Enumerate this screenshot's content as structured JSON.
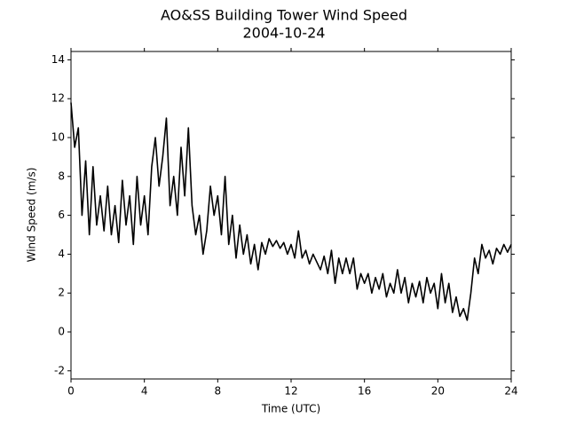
{
  "chart_data": {
    "type": "line",
    "title": "AO&SS Building Tower Wind Speed",
    "subtitle": "2004-10-24",
    "x_label": "Time (UTC)",
    "y_label": "Wind Speed (m/s)",
    "xlim": [
      0,
      24
    ],
    "xticks": [
      0,
      4,
      8,
      12,
      16,
      20,
      24
    ],
    "ylim": [
      -2.42,
      14.43
    ],
    "yticks": [
      -2,
      0,
      2,
      4,
      6,
      8,
      10,
      12,
      14
    ],
    "grid": false,
    "x": [
      0,
      0.2,
      0.4,
      0.6,
      0.8,
      1,
      1.2,
      1.4,
      1.6,
      1.8,
      2,
      2.2,
      2.4,
      2.6,
      2.8,
      3,
      3.2,
      3.4,
      3.6,
      3.8,
      4,
      4.2,
      4.4,
      4.6,
      4.8,
      5,
      5.2,
      5.4,
      5.6,
      5.8,
      6,
      6.2,
      6.4,
      6.6,
      6.8,
      7,
      7.2,
      7.4,
      7.6,
      7.8,
      8,
      8.2,
      8.4,
      8.6,
      8.8,
      9,
      9.2,
      9.4,
      9.6,
      9.8,
      10,
      10.2,
      10.4,
      10.6,
      10.8,
      11,
      11.2,
      11.4,
      11.6,
      11.8,
      12,
      12.2,
      12.4,
      12.6,
      12.8,
      13,
      13.2,
      13.4,
      13.6,
      13.8,
      14,
      14.2,
      14.4,
      14.6,
      14.8,
      15,
      15.2,
      15.4,
      15.6,
      15.8,
      16,
      16.2,
      16.4,
      16.6,
      16.8,
      17,
      17.2,
      17.4,
      17.6,
      17.8,
      18,
      18.2,
      18.4,
      18.6,
      18.8,
      19,
      19.2,
      19.4,
      19.6,
      19.8,
      20,
      20.2,
      20.4,
      20.6,
      20.8,
      21,
      21.2,
      21.4,
      21.6,
      21.8,
      22,
      22.2,
      22.4,
      22.6,
      22.8,
      23,
      23.2,
      23.4,
      23.6,
      23.8,
      24
    ],
    "series": [
      {
        "color": "#000000",
        "values": [
          11.8,
          9.5,
          10.5,
          6.0,
          8.8,
          5.0,
          8.5,
          5.5,
          7.0,
          5.2,
          7.5,
          5.0,
          6.5,
          4.6,
          7.8,
          5.5,
          7.0,
          4.5,
          8.0,
          5.5,
          7.0,
          5.0,
          8.5,
          10.0,
          7.5,
          9.0,
          11.0,
          6.5,
          8.0,
          6.0,
          9.5,
          7.0,
          10.5,
          6.5,
          5.0,
          6.0,
          4.0,
          5.2,
          7.5,
          6.0,
          7.0,
          5.0,
          8.0,
          4.5,
          6.0,
          3.8,
          5.5,
          4.0,
          5.0,
          3.5,
          4.5,
          3.2,
          4.6,
          4.0,
          4.8,
          4.4,
          4.7,
          4.3,
          4.6,
          4.0,
          4.5,
          3.8,
          5.2,
          3.8,
          4.2,
          3.5,
          4.0,
          3.6,
          3.2,
          3.9,
          3.0,
          4.2,
          2.5,
          3.8,
          3.0,
          3.8,
          3.0,
          3.8,
          2.2,
          3.0,
          2.5,
          3.0,
          2.0,
          2.8,
          2.2,
          3.0,
          1.8,
          2.5,
          2.0,
          3.2,
          2.0,
          2.8,
          1.5,
          2.5,
          1.8,
          2.6,
          1.5,
          2.8,
          2.0,
          2.5,
          1.2,
          3.0,
          1.5,
          2.5,
          1.0,
          1.8,
          0.8,
          1.2,
          0.6,
          2.0,
          3.8,
          3.0,
          4.5,
          3.8,
          4.2,
          3.5,
          4.3,
          4.0,
          4.5,
          4.1,
          4.5
        ]
      }
    ]
  }
}
